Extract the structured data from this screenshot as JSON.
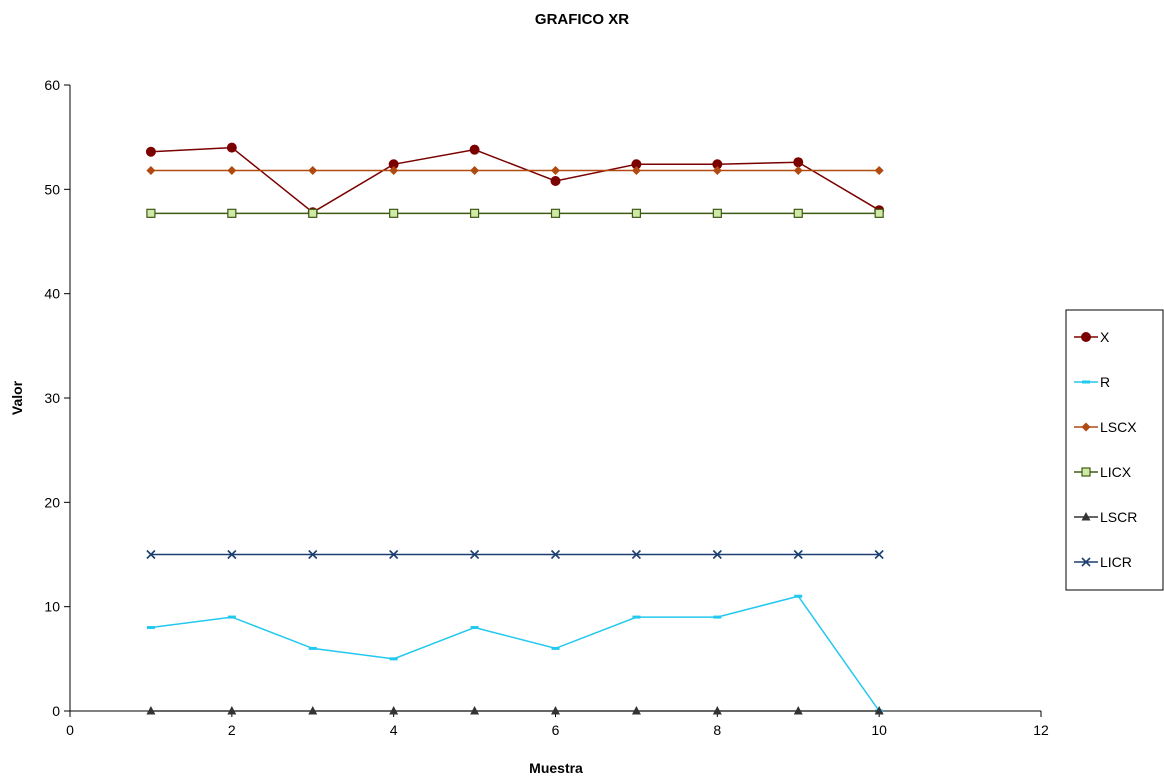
{
  "chart_data": {
    "type": "line",
    "title": "GRAFICO XR",
    "xlabel": "Muestra",
    "ylabel": "Valor",
    "xlim": [
      0,
      12
    ],
    "ylim": [
      0,
      60
    ],
    "x_ticks": [
      0,
      2,
      4,
      6,
      8,
      10,
      12
    ],
    "y_ticks": [
      0,
      10,
      20,
      30,
      40,
      50,
      60
    ],
    "grid": false,
    "legend_position": "right",
    "x": [
      1,
      2,
      3,
      4,
      5,
      6,
      7,
      8,
      9,
      10
    ],
    "series": [
      {
        "name": "X",
        "color": "#7b0000",
        "marker": "circle",
        "values": [
          53.6,
          54.0,
          47.8,
          52.4,
          53.8,
          50.8,
          52.4,
          52.4,
          52.6,
          48.0
        ]
      },
      {
        "name": "R",
        "color": "#22c8ee",
        "marker": "dash",
        "values": [
          8,
          9,
          6,
          5,
          8,
          6,
          9,
          9,
          11,
          0
        ]
      },
      {
        "name": "LSCX",
        "color": "#b04a10",
        "marker": "diamond",
        "values": [
          51.8,
          51.8,
          51.8,
          51.8,
          51.8,
          51.8,
          51.8,
          51.8,
          51.8,
          51.8
        ]
      },
      {
        "name": "LICX",
        "color": "#3f5a14",
        "marker": "square",
        "values": [
          47.7,
          47.7,
          47.7,
          47.7,
          47.7,
          47.7,
          47.7,
          47.7,
          47.7,
          47.7
        ]
      },
      {
        "name": "LSCR",
        "color": "#333333",
        "marker": "triangle",
        "values": [
          0,
          0,
          0,
          0,
          0,
          0,
          0,
          0,
          0,
          0
        ]
      },
      {
        "name": "LICR",
        "color": "#1c3f70",
        "marker": "x",
        "values": [
          15,
          15,
          15,
          15,
          15,
          15,
          15,
          15,
          15,
          15
        ]
      }
    ]
  }
}
